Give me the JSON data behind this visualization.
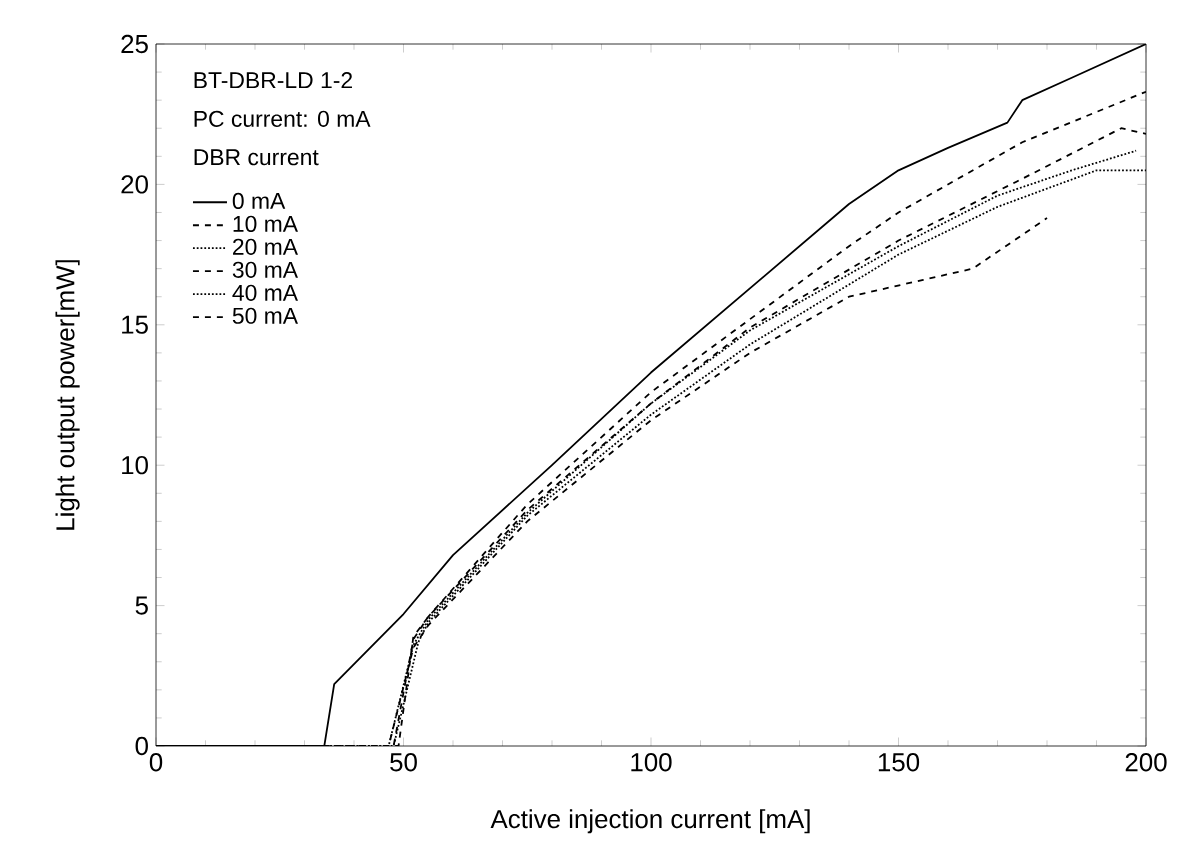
{
  "chart_data": {
    "type": "line",
    "title": "BT-DBR-LD 1-2",
    "annotations": [
      "PC current: 0 mA"
    ],
    "legend_title": "DBR current",
    "xlabel": "Active injection current [mA]",
    "ylabel": "Light output power[mW]",
    "xlim": [
      0,
      200
    ],
    "ylim": [
      0,
      25
    ],
    "xticks": [
      0,
      50,
      100,
      150,
      200
    ],
    "yticks": [
      0,
      5,
      10,
      15,
      20,
      25
    ],
    "legend": "top left",
    "grid": false,
    "series": [
      {
        "name": "0 mA",
        "color": "#000000",
        "line_style": "solid",
        "x": [
          0,
          34,
          36,
          50,
          60,
          80,
          100,
          120,
          140,
          150,
          160,
          172,
          175,
          185,
          200
        ],
        "values": [
          0,
          0,
          2.2,
          4.7,
          6.8,
          10.0,
          13.3,
          16.3,
          19.3,
          20.5,
          21.3,
          22.2,
          23.0,
          23.8,
          25.0
        ]
      },
      {
        "name": "10 mA",
        "color": "#000000",
        "line_style": "dashed",
        "x": [
          0,
          48,
          52,
          55,
          75,
          100,
          120,
          140,
          150,
          175,
          200
        ],
        "values": [
          0,
          0,
          3.8,
          4.6,
          8.6,
          12.6,
          15.2,
          17.8,
          19.0,
          21.5,
          23.3
        ]
      },
      {
        "name": "20 mA",
        "color": "#000000",
        "line_style": "dotted",
        "x": [
          0,
          47,
          52,
          55,
          75,
          100,
          120,
          150,
          170,
          185,
          198
        ],
        "values": [
          0,
          0,
          3.6,
          4.5,
          8.3,
          12.2,
          14.8,
          17.8,
          19.6,
          20.5,
          21.2
        ]
      },
      {
        "name": "30 mA",
        "color": "#000000",
        "line_style": "dashed",
        "x": [
          0,
          49,
          52,
          55,
          75,
          100,
          120,
          150,
          175,
          195,
          200
        ],
        "values": [
          0,
          0,
          3.9,
          4.6,
          8.4,
          12.2,
          14.9,
          18.0,
          20.2,
          22.0,
          21.8
        ]
      },
      {
        "name": "40 mA",
        "color": "#000000",
        "line_style": "dotted",
        "x": [
          0,
          48,
          53,
          55,
          75,
          100,
          120,
          150,
          170,
          190,
          200
        ],
        "values": [
          0,
          0,
          3.7,
          4.4,
          8.2,
          11.8,
          14.3,
          17.5,
          19.2,
          20.5,
          20.5
        ]
      },
      {
        "name": "50 mA",
        "color": "#000000",
        "line_style": "dashed",
        "x": [
          0,
          47,
          52,
          55,
          75,
          100,
          120,
          140,
          155,
          165,
          180
        ],
        "values": [
          0,
          0,
          3.5,
          4.3,
          8.0,
          11.6,
          14.0,
          16.0,
          16.6,
          17.0,
          18.8
        ]
      }
    ]
  }
}
